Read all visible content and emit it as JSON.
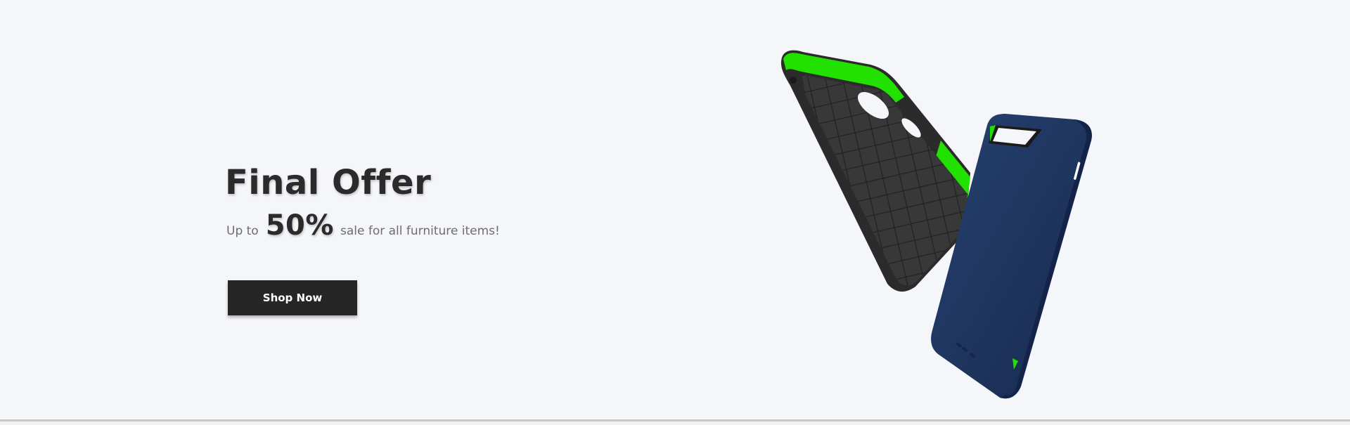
{
  "hero": {
    "title": "Final Offer",
    "subtitle": {
      "prefix": "Up to",
      "highlight": "50%",
      "suffix": "sale for all furniture items!"
    },
    "cta_label": "Shop Now"
  },
  "product": {
    "icon": "phone-case-image",
    "case_front_color": "#1e3560",
    "case_inner_color": "#2f2f2f",
    "accent_color": "#22e000"
  },
  "colors": {
    "background": "#f4f6f9",
    "text_primary": "#2b2b2b",
    "text_secondary": "#6e6e6e",
    "button_bg": "#262626",
    "button_text": "#ffffff"
  }
}
